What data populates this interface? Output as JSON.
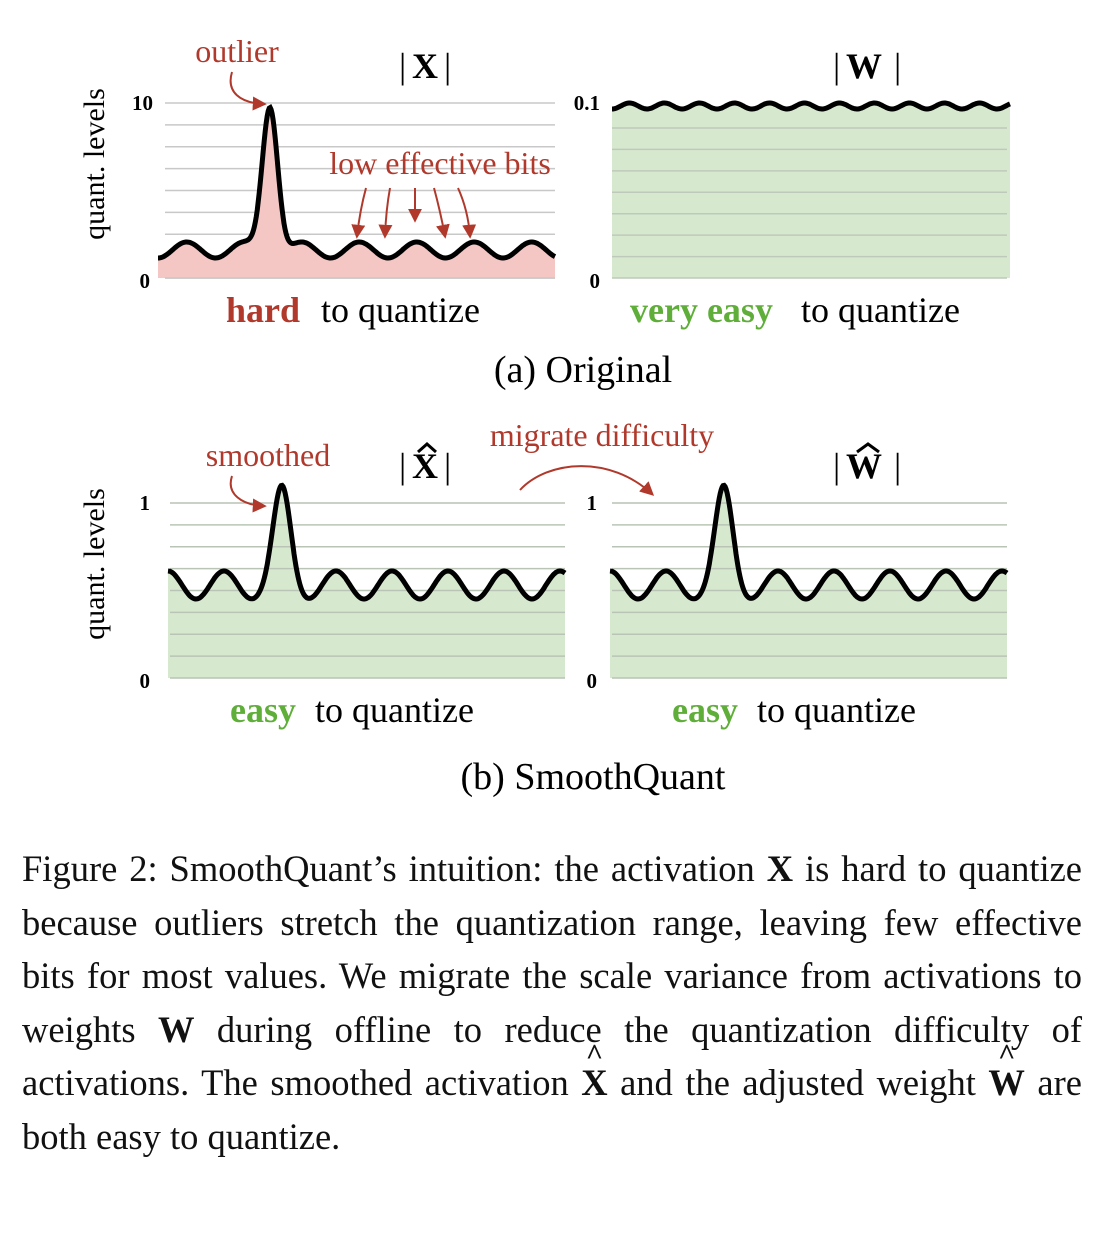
{
  "panel_a": {
    "label": "(a) Original",
    "left_chart": {
      "title_bar_left": "|",
      "title_var": "X",
      "title_bar_right": "|",
      "y_axis_label": "quant. levels",
      "y_max_label": "10",
      "y_min_label": "0",
      "annotation_outlier": "outlier",
      "annotation_low_bits": "low effective bits",
      "verdict_bold": "hard",
      "verdict_rest": " to quantize"
    },
    "right_chart": {
      "title_bar_left": "|",
      "title_var": "W",
      "title_bar_right": "|",
      "y_max_label": "0.1",
      "y_min_label": "0",
      "verdict_bold": "very easy",
      "verdict_rest": " to quantize"
    }
  },
  "panel_b": {
    "label": "(b) SmoothQuant",
    "migrate_label": "migrate difficulty",
    "left_chart": {
      "title_bar_left": "|",
      "title_var": "X",
      "title_bar_right": "|",
      "y_axis_label": "quant. levels",
      "y_max_label": "1",
      "y_min_label": "0",
      "annotation_smoothed": "smoothed",
      "verdict_bold": "easy",
      "verdict_rest": " to quantize"
    },
    "right_chart": {
      "title_bar_left": "|",
      "title_var": "W",
      "title_bar_right": "|",
      "y_max_label": "1",
      "y_min_label": "0",
      "verdict_bold": "easy",
      "verdict_rest": " to quantize"
    }
  },
  "caption": {
    "p1": "Figure 2: SmoothQuant’s intuition: the activation ",
    "var_x": "X",
    "p2": " is hard to quantize because outliers stretch the quantization range, leaving few effective bits for most values. We migrate the scale variance from activations to weights ",
    "var_w": "W",
    "p3": " during offline to reduce the quantization difficulty of activations.  The smoothed activation ",
    "var_xhat": "X",
    "p4": " and the adjusted weight ",
    "var_what": "W",
    "p5": " are both easy to quantize."
  },
  "colors": {
    "red_text": "#b0392c",
    "green_text": "#5fae3a",
    "red_fill": "#f4c6c4",
    "green_fill": "#d6e9cf",
    "grid": "#c8c8c8"
  }
}
